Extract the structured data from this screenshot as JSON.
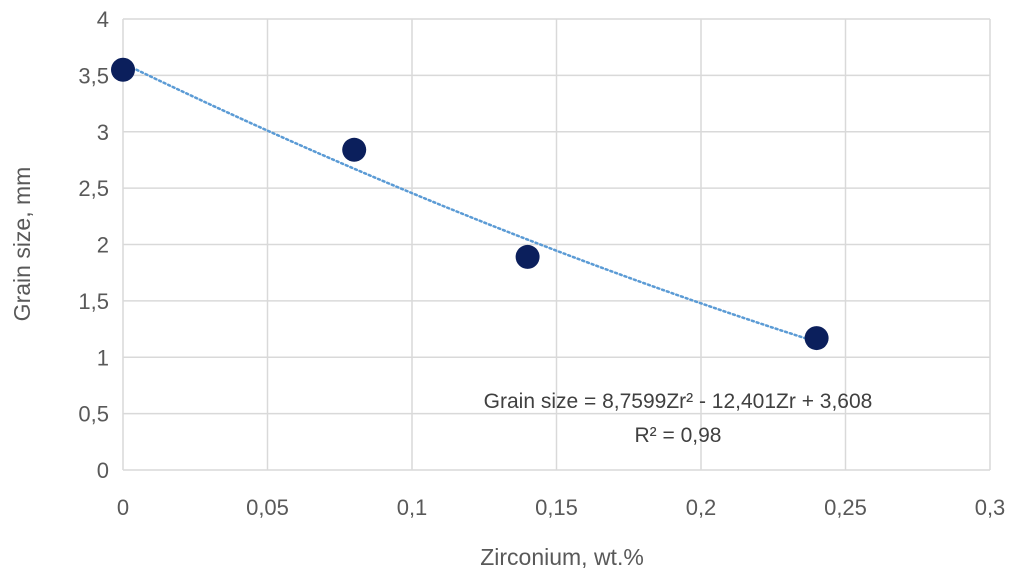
{
  "chart_data": {
    "type": "scatter",
    "xlabel": "Zirconium, wt.%",
    "ylabel": "Grain size, mm",
    "xlim": [
      0,
      0.3
    ],
    "ylim": [
      0,
      4
    ],
    "x_ticks": [
      "0",
      "0,05",
      "0,1",
      "0,15",
      "0,2",
      "0,25",
      "0,3"
    ],
    "y_ticks": [
      "0",
      "0,5",
      "1",
      "1,5",
      "2",
      "2,5",
      "3",
      "3,5",
      "4"
    ],
    "series": [
      {
        "x": [
          0,
          0.08,
          0.14,
          0.24
        ],
        "y": [
          3.55,
          2.84,
          1.89,
          1.17
        ],
        "color": "#0b1f5c"
      }
    ],
    "trendline": {
      "type": "polynomial",
      "coefficients": [
        8.7599,
        -12.401,
        3.608
      ],
      "x_range": [
        0,
        0.24
      ],
      "color": "#5b9bd5",
      "style": "dotted",
      "equation": "Grain size = 8,7599Zr² - 12,401Zr + 3,608",
      "r_squared": "R² = 0,98"
    },
    "grid": true
  }
}
